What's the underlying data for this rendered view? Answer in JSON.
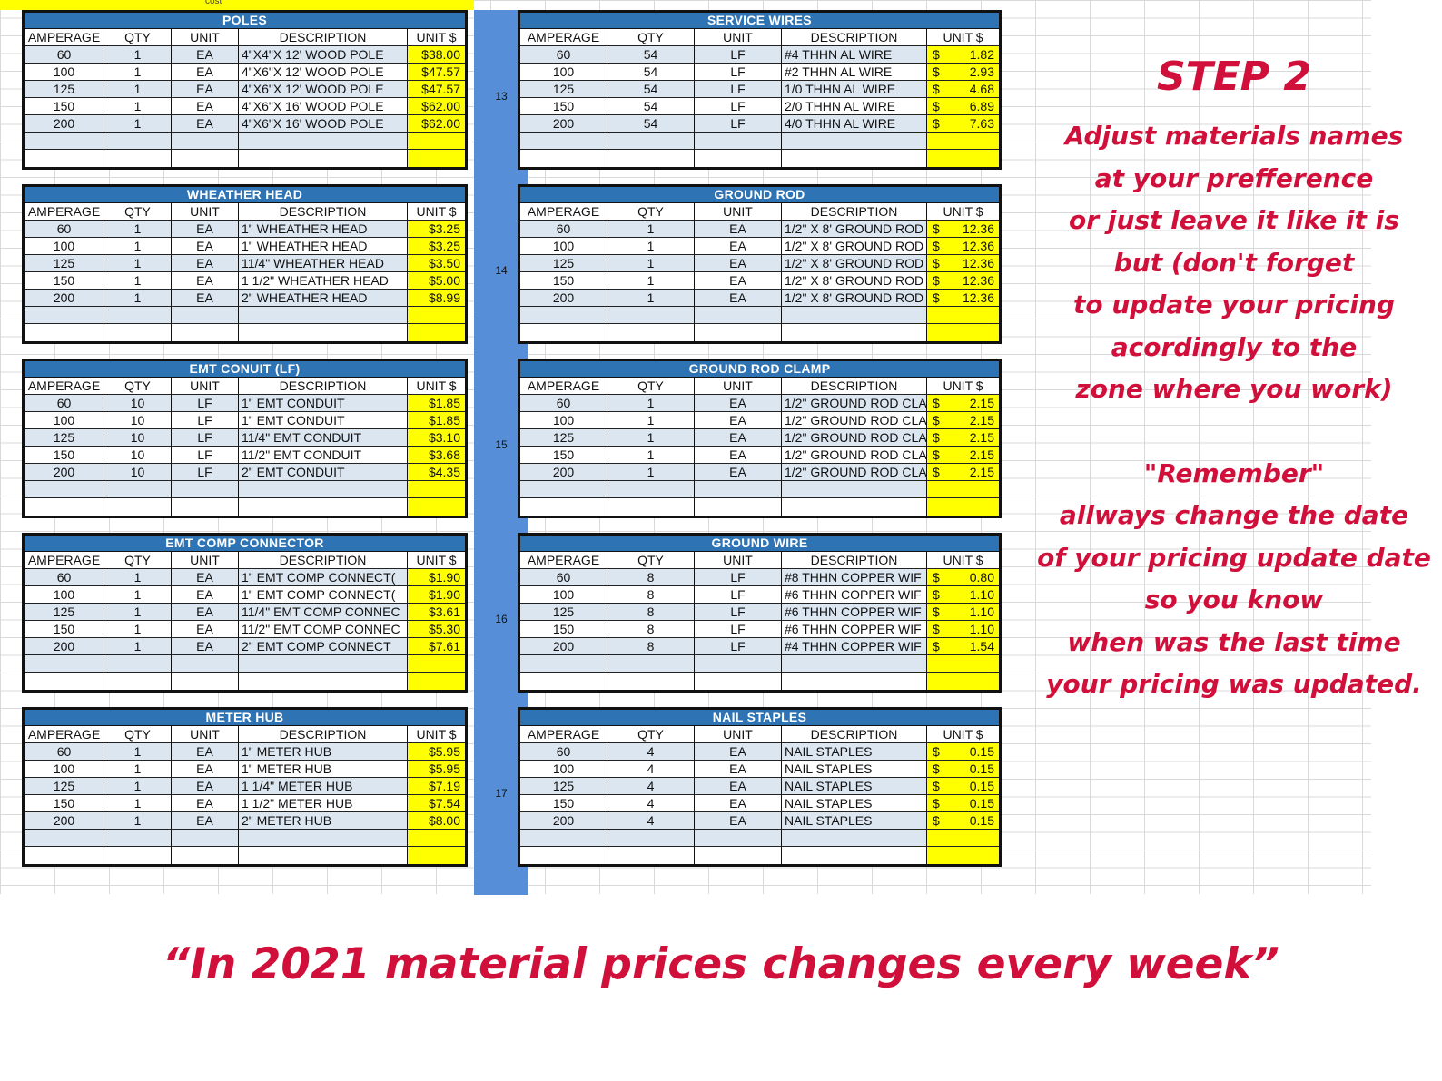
{
  "sheet": {
    "top_label": "cost",
    "step_numbers": [
      "13",
      "14",
      "15",
      "16",
      "17"
    ]
  },
  "columns_left": [
    "AMPERAGE",
    "QTY",
    "UNIT",
    "DESCRIPTION",
    "UNIT $"
  ],
  "columns_right": [
    "AMPERAGE",
    "QTY",
    "UNIT",
    "DESCRIPTION",
    "UNIT $"
  ],
  "tables_left": [
    {
      "title": "POLES",
      "rows": [
        [
          "60",
          "1",
          "EA",
          "4\"X4\"X 12' WOOD POLE",
          "$38.00"
        ],
        [
          "100",
          "1",
          "EA",
          "4\"X6\"X 12' WOOD POLE",
          "$47.57"
        ],
        [
          "125",
          "1",
          "EA",
          "4\"X6\"X 12' WOOD POLE",
          "$47.57"
        ],
        [
          "150",
          "1",
          "EA",
          "4\"X6\"X 16' WOOD POLE",
          "$62.00"
        ],
        [
          "200",
          "1",
          "EA",
          "4\"X6\"X 16' WOOD POLE",
          "$62.00"
        ]
      ]
    },
    {
      "title": "WHEATHER HEAD",
      "rows": [
        [
          "60",
          "1",
          "EA",
          "1\" WHEATHER HEAD",
          "$3.25"
        ],
        [
          "100",
          "1",
          "EA",
          "1\" WHEATHER HEAD",
          "$3.25"
        ],
        [
          "125",
          "1",
          "EA",
          "11/4\" WHEATHER HEAD",
          "$3.50"
        ],
        [
          "150",
          "1",
          "EA",
          "1 1/2\" WHEATHER HEAD",
          "$5.00"
        ],
        [
          "200",
          "1",
          "EA",
          "2\" WHEATHER HEAD",
          "$8.99"
        ]
      ]
    },
    {
      "title": "EMT CONUIT (LF)",
      "rows": [
        [
          "60",
          "10",
          "LF",
          "1\" EMT CONDUIT",
          "$1.85"
        ],
        [
          "100",
          "10",
          "LF",
          "1\" EMT CONDUIT",
          "$1.85"
        ],
        [
          "125",
          "10",
          "LF",
          "11/4\" EMT CONDUIT",
          "$3.10"
        ],
        [
          "150",
          "10",
          "LF",
          "11/2\" EMT CONDUIT",
          "$3.68"
        ],
        [
          "200",
          "10",
          "LF",
          "2\" EMT CONDUIT",
          "$4.35"
        ]
      ]
    },
    {
      "title": "EMT COMP CONNECTOR",
      "rows": [
        [
          "60",
          "1",
          "EA",
          "1\" EMT COMP CONNECT(",
          "$1.90"
        ],
        [
          "100",
          "1",
          "EA",
          "1\" EMT COMP CONNECT(",
          "$1.90"
        ],
        [
          "125",
          "1",
          "EA",
          "11/4\" EMT COMP CONNEC",
          "$3.61"
        ],
        [
          "150",
          "1",
          "EA",
          "11/2\" EMT COMP CONNEC",
          "$5.30"
        ],
        [
          "200",
          "1",
          "EA",
          "2\" EMT COMP CONNECT",
          "$7.61"
        ]
      ]
    },
    {
      "title": "METER HUB",
      "rows": [
        [
          "60",
          "1",
          "EA",
          "1\" METER HUB",
          "$5.95"
        ],
        [
          "100",
          "1",
          "EA",
          "1\" METER HUB",
          "$5.95"
        ],
        [
          "125",
          "1",
          "EA",
          "1 1/4\" METER HUB",
          "$7.19"
        ],
        [
          "150",
          "1",
          "EA",
          "1 1/2\" METER HUB",
          "$7.54"
        ],
        [
          "200",
          "1",
          "EA",
          "2\" METER HUB",
          "$8.00"
        ]
      ]
    }
  ],
  "tables_right": [
    {
      "title": "SERVICE WIRES",
      "rows": [
        [
          "60",
          "54",
          "LF",
          "#4 THHN AL WIRE",
          "$",
          "1.82"
        ],
        [
          "100",
          "54",
          "LF",
          "#2 THHN AL WIRE",
          "$",
          "2.93"
        ],
        [
          "125",
          "54",
          "LF",
          "1/0 THHN AL WIRE",
          "$",
          "4.68"
        ],
        [
          "150",
          "54",
          "LF",
          "2/0 THHN AL WIRE",
          "$",
          "6.89"
        ],
        [
          "200",
          "54",
          "LF",
          "4/0 THHN AL WIRE",
          "$",
          "7.63"
        ]
      ]
    },
    {
      "title": "GROUND ROD",
      "rows": [
        [
          "60",
          "1",
          "EA",
          "1/2\" X 8' GROUND ROD",
          "$",
          "12.36"
        ],
        [
          "100",
          "1",
          "EA",
          "1/2\" X 8' GROUND ROD",
          "$",
          "12.36"
        ],
        [
          "125",
          "1",
          "EA",
          "1/2\" X 8' GROUND ROD",
          "$",
          "12.36"
        ],
        [
          "150",
          "1",
          "EA",
          "1/2\" X 8' GROUND ROD",
          "$",
          "12.36"
        ],
        [
          "200",
          "1",
          "EA",
          "1/2\" X 8' GROUND ROD",
          "$",
          "12.36"
        ]
      ]
    },
    {
      "title": "GROUND ROD CLAMP",
      "rows": [
        [
          "60",
          "1",
          "EA",
          "1/2\" GROUND ROD CLA",
          "$",
          "2.15"
        ],
        [
          "100",
          "1",
          "EA",
          "1/2\" GROUND ROD CLA",
          "$",
          "2.15"
        ],
        [
          "125",
          "1",
          "EA",
          "1/2\" GROUND ROD CLA",
          "$",
          "2.15"
        ],
        [
          "150",
          "1",
          "EA",
          "1/2\" GROUND ROD CLA",
          "$",
          "2.15"
        ],
        [
          "200",
          "1",
          "EA",
          "1/2\" GROUND ROD CLA",
          "$",
          "2.15"
        ]
      ]
    },
    {
      "title": "GROUND WIRE",
      "rows": [
        [
          "60",
          "8",
          "LF",
          "#8 THHN COPPER WIF",
          "$",
          "0.80"
        ],
        [
          "100",
          "8",
          "LF",
          "#6 THHN COPPER WIF",
          "$",
          "1.10"
        ],
        [
          "125",
          "8",
          "LF",
          "#6 THHN COPPER WIF",
          "$",
          "1.10"
        ],
        [
          "150",
          "8",
          "LF",
          "#6 THHN COPPER WIF",
          "$",
          "1.10"
        ],
        [
          "200",
          "8",
          "LF",
          "#4 THHN COPPER WIF",
          "$",
          "1.54"
        ]
      ]
    },
    {
      "title": "NAIL STAPLES",
      "rows": [
        [
          "60",
          "4",
          "EA",
          "NAIL STAPLES",
          "$",
          "0.15"
        ],
        [
          "100",
          "4",
          "EA",
          "NAIL STAPLES",
          "$",
          "0.15"
        ],
        [
          "125",
          "4",
          "EA",
          "NAIL STAPLES",
          "$",
          "0.15"
        ],
        [
          "150",
          "4",
          "EA",
          "NAIL STAPLES",
          "$",
          "0.15"
        ],
        [
          "200",
          "4",
          "EA",
          "NAIL STAPLES",
          "$",
          "0.15"
        ]
      ]
    }
  ],
  "step_panel": {
    "title": "STEP 2",
    "lines": [
      "Adjust materials names",
      "at your prefference",
      "or just leave it like it is",
      "but (don't forget",
      "to update your pricing",
      "acordingly to the",
      "zone where you work)",
      "",
      "\"Remember\"",
      "allways change the date",
      "of your pricing update date",
      "so you know",
      "when was the last time",
      "your pricing was updated."
    ]
  },
  "footer_quote": "“In 2021 material prices changes every week”",
  "colors": {
    "header_blue": "#2e74b5",
    "divider_blue": "#568fd7",
    "price_yellow": "#ffff00",
    "alt_row": "#dce6f1",
    "accent_red": "#d0103a"
  }
}
